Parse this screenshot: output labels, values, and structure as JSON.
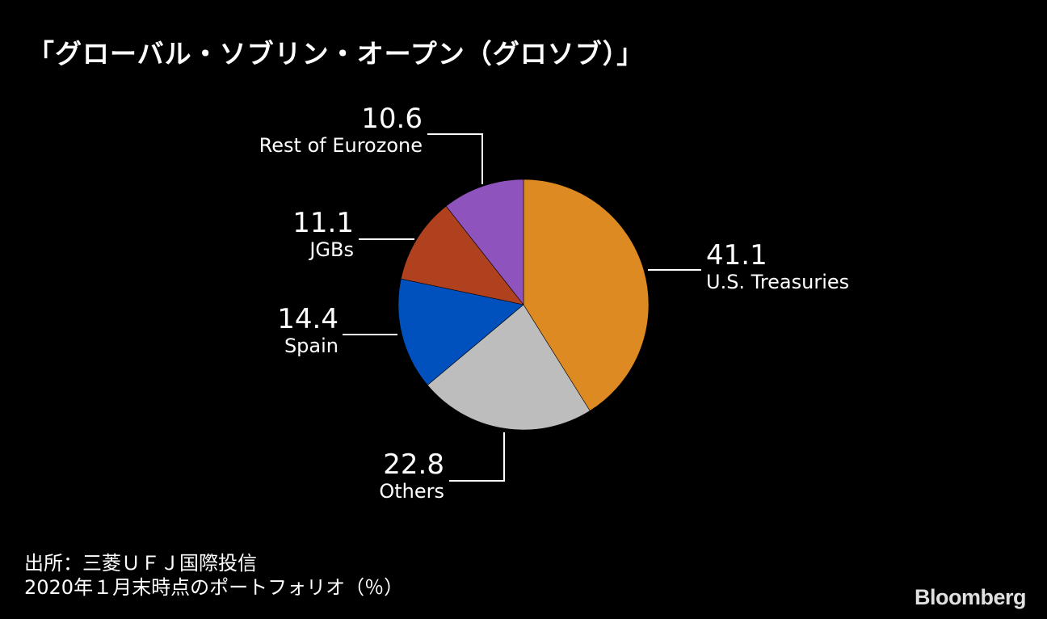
{
  "title": "「グローバル・ソブリン・オープン（グロソブ）」",
  "chart_data": {
    "type": "pie",
    "unit": "%",
    "slices": [
      {
        "label": "U.S. Treasuries",
        "value": 41.1,
        "display": "41.1",
        "color": "#DD8A22"
      },
      {
        "label": "Others",
        "value": 22.8,
        "display": "22.8",
        "color": "#BDBDBD"
      },
      {
        "label": "Spain",
        "value": 14.4,
        "display": "14.4",
        "color": "#0050BE"
      },
      {
        "label": "JGBs",
        "value": 11.1,
        "display": "11.1",
        "color": "#B0411E"
      },
      {
        "label": "Rest of Eurozone",
        "value": 10.6,
        "display": "10.6",
        "color": "#8E53BD"
      }
    ]
  },
  "footer": {
    "source": "出所：三菱ＵＦＪ国際投信",
    "note": "2020年１月末時点のポートフォリオ（％）"
  },
  "brand": "Bloomberg"
}
